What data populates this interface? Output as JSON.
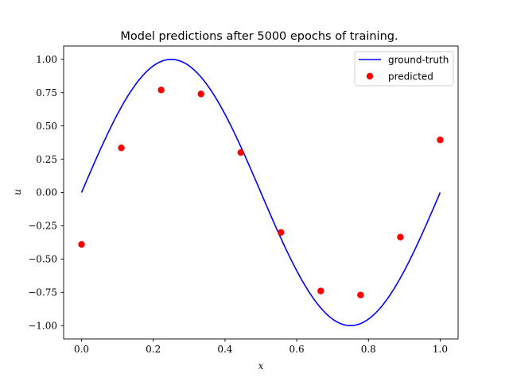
{
  "chart_data": {
    "type": "line",
    "title": "Model predictions after 5000 epochs of training.",
    "xlabel": "x",
    "ylabel": "u",
    "xlim": [
      -0.05,
      1.05
    ],
    "ylim": [
      -1.1,
      1.1
    ],
    "grid": false,
    "legend_position": "top-right",
    "xticks": [
      0.0,
      0.2,
      0.4,
      0.6,
      0.8,
      1.0
    ],
    "xtick_labels": [
      "0.0",
      "0.2",
      "0.4",
      "0.6",
      "0.8",
      "1.0"
    ],
    "yticks": [
      -1.0,
      -0.75,
      -0.5,
      -0.25,
      0.0,
      0.25,
      0.5,
      0.75,
      1.0
    ],
    "ytick_labels": [
      "−1.00",
      "−0.75",
      "−0.50",
      "−0.25",
      "0.00",
      "0.25",
      "0.50",
      "0.75",
      "1.00"
    ],
    "series": [
      {
        "name": "ground-truth",
        "kind": "line",
        "function": "sin(2*pi*x)",
        "x_range": [
          0,
          1
        ],
        "color": "#0000ff"
      },
      {
        "name": "predicted",
        "kind": "scatter",
        "color": "#ff0000",
        "points": [
          {
            "x": 0.0,
            "y": -0.39
          },
          {
            "x": 0.111,
            "y": 0.335
          },
          {
            "x": 0.222,
            "y": 0.77
          },
          {
            "x": 0.333,
            "y": 0.74
          },
          {
            "x": 0.444,
            "y": 0.3
          },
          {
            "x": 0.556,
            "y": -0.3
          },
          {
            "x": 0.667,
            "y": -0.74
          },
          {
            "x": 0.778,
            "y": -0.77
          },
          {
            "x": 0.889,
            "y": -0.335
          },
          {
            "x": 1.0,
            "y": 0.395
          }
        ]
      }
    ]
  }
}
